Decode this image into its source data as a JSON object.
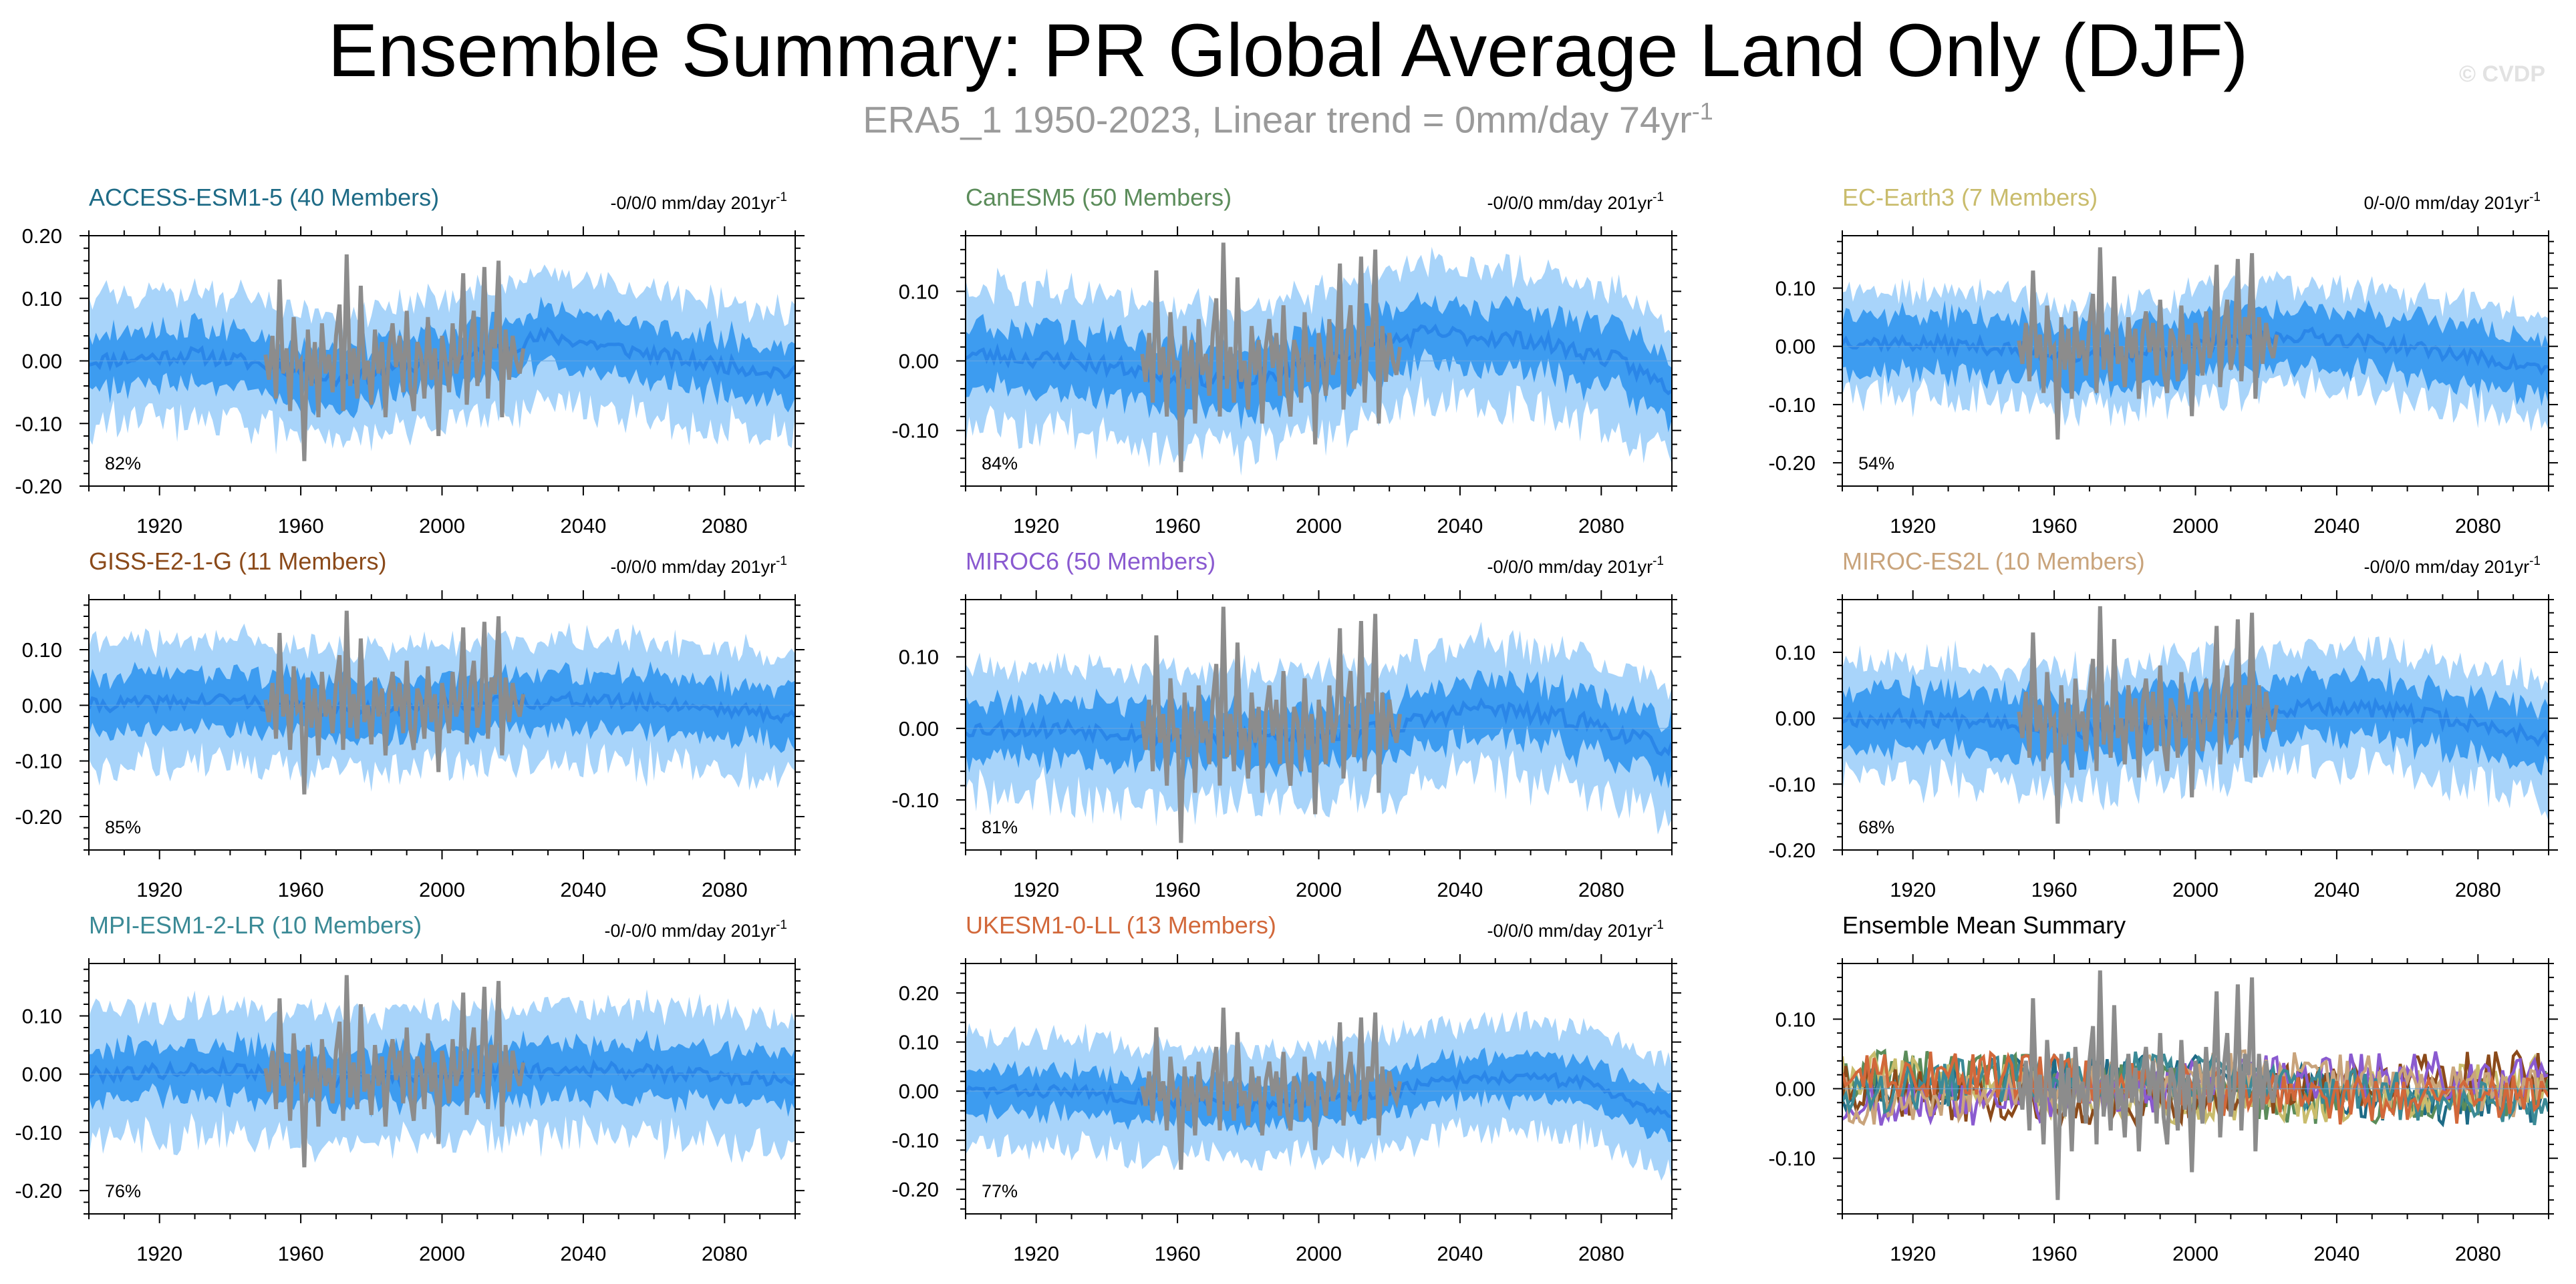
{
  "title": "Ensemble Summary: PR Global Average Land Only (DJF)",
  "subtitle": {
    "text": "ERA5_1 1950-2023, Linear trend = 0mm/day 74yr",
    "superscript": "-1"
  },
  "watermark": "© CVDP",
  "colors": {
    "spread_outer": "#a8d4fa",
    "spread_inner": "#3d9cf0",
    "ensemble_mean": "#2a86e8",
    "observations": "#8c8c8c",
    "axis": "#000000"
  },
  "chart_data": [
    {
      "type": "area",
      "title": "ACCESS-ESM1-5 (40 Members)",
      "title_color": "#1e6b86",
      "trend_label": "-0/0/0 mm/day 201yr",
      "trend_sup": "-1",
      "percent_label": "82%",
      "xlim": [
        1900,
        2100
      ],
      "ylim": [
        -0.2,
        0.2
      ],
      "xticks": [
        1920,
        1960,
        2000,
        2040,
        2080
      ],
      "yticks": [
        0.2,
        0.1,
        0.0,
        -0.1,
        -0.2
      ],
      "ytick_labels": [
        "0.20",
        "0.10",
        "0.00",
        "-0.10",
        "-0.20"
      ],
      "mean_path": [
        [
          1900,
          0.0
        ],
        [
          1930,
          0.01
        ],
        [
          1955,
          -0.01
        ],
        [
          1970,
          -0.03
        ],
        [
          1990,
          -0.01
        ],
        [
          2010,
          0.01
        ],
        [
          2030,
          0.04
        ],
        [
          2050,
          0.02
        ],
        [
          2070,
          0.0
        ],
        [
          2100,
          -0.02
        ]
      ],
      "inner_halfwidth": 0.045,
      "outer_halfwidth": 0.1,
      "seed": 11
    },
    {
      "type": "area",
      "title": "CanESM5 (50 Members)",
      "title_color": "#5b8c5a",
      "trend_label": "-0/0/0 mm/day 201yr",
      "trend_sup": "-1",
      "percent_label": "84%",
      "xlim": [
        1900,
        2100
      ],
      "ylim": [
        -0.18,
        0.18
      ],
      "xticks": [
        1920,
        1960,
        2000,
        2040,
        2080
      ],
      "yticks": [
        0.1,
        0.0,
        -0.1
      ],
      "ytick_labels": [
        "0.10",
        "0.00",
        "-0.10"
      ],
      "mean_path": [
        [
          1900,
          0.01
        ],
        [
          1930,
          0.0
        ],
        [
          1960,
          -0.02
        ],
        [
          1980,
          -0.03
        ],
        [
          2000,
          0.0
        ],
        [
          2030,
          0.04
        ],
        [
          2060,
          0.03
        ],
        [
          2085,
          0.0
        ],
        [
          2100,
          -0.04
        ]
      ],
      "inner_halfwidth": 0.045,
      "outer_halfwidth": 0.1,
      "seed": 23
    },
    {
      "type": "area",
      "title": "EC-Earth3 (7 Members)",
      "title_color": "#c9bc6c",
      "trend_label": "0/-0/0 mm/day 201yr",
      "trend_sup": "-1",
      "percent_label": "54%",
      "xlim": [
        1900,
        2100
      ],
      "ylim": [
        -0.24,
        0.19
      ],
      "xticks": [
        1920,
        1960,
        2000,
        2040,
        2080
      ],
      "yticks": [
        0.1,
        0.0,
        -0.1,
        -0.2
      ],
      "ytick_labels": [
        "0.10",
        "0.00",
        "-0.10",
        "-0.20"
      ],
      "mean_path": [
        [
          1900,
          0.01
        ],
        [
          1940,
          0.0
        ],
        [
          1970,
          -0.02
        ],
        [
          2000,
          0.0
        ],
        [
          2030,
          0.02
        ],
        [
          2060,
          0.0
        ],
        [
          2100,
          -0.04
        ]
      ],
      "inner_halfwidth": 0.05,
      "outer_halfwidth": 0.09,
      "seed": 37
    },
    {
      "type": "area",
      "title": "GISS-E2-1-G (11 Members)",
      "title_color": "#8b4a1a",
      "trend_label": "-0/0/0 mm/day 201yr",
      "trend_sup": "-1",
      "percent_label": "85%",
      "xlim": [
        1900,
        2100
      ],
      "ylim": [
        -0.26,
        0.19
      ],
      "xticks": [
        1920,
        1960,
        2000,
        2040,
        2080
      ],
      "yticks": [
        0.1,
        0.0,
        -0.1,
        -0.2
      ],
      "ytick_labels": [
        "0.10",
        "0.00",
        "-0.10",
        "-0.20"
      ],
      "mean_path": [
        [
          1900,
          0.0
        ],
        [
          1940,
          0.01
        ],
        [
          1970,
          -0.01
        ],
        [
          2000,
          0.0
        ],
        [
          2040,
          0.01
        ],
        [
          2070,
          0.0
        ],
        [
          2100,
          -0.02
        ]
      ],
      "inner_halfwidth": 0.05,
      "outer_halfwidth": 0.11,
      "seed": 41
    },
    {
      "type": "area",
      "title": "MIROC6 (50 Members)",
      "title_color": "#8a5ad0",
      "trend_label": "-0/0/0 mm/day 201yr",
      "trend_sup": "-1",
      "percent_label": "81%",
      "xlim": [
        1900,
        2100
      ],
      "ylim": [
        -0.17,
        0.18
      ],
      "xticks": [
        1920,
        1960,
        2000,
        2040,
        2080
      ],
      "yticks": [
        0.1,
        0.0,
        -0.1
      ],
      "ytick_labels": [
        "0.10",
        "0.00",
        "-0.10"
      ],
      "mean_path": [
        [
          1900,
          0.0
        ],
        [
          1930,
          0.0
        ],
        [
          1960,
          -0.01
        ],
        [
          1990,
          -0.01
        ],
        [
          2020,
          0.0
        ],
        [
          2045,
          0.03
        ],
        [
          2075,
          0.01
        ],
        [
          2100,
          -0.03
        ]
      ],
      "inner_halfwidth": 0.04,
      "outer_halfwidth": 0.09,
      "seed": 53
    },
    {
      "type": "area",
      "title": "MIROC-ES2L (10 Members)",
      "title_color": "#c9a47c",
      "trend_label": "-0/0/0 mm/day 201yr",
      "trend_sup": "-1",
      "percent_label": "68%",
      "xlim": [
        1900,
        2100
      ],
      "ylim": [
        -0.2,
        0.18
      ],
      "xticks": [
        1920,
        1960,
        2000,
        2040,
        2080
      ],
      "yticks": [
        0.1,
        0.0,
        -0.1,
        -0.2
      ],
      "ytick_labels": [
        "0.10",
        "0.00",
        "-0.10",
        "-0.20"
      ],
      "mean_path": [
        [
          1900,
          0.0
        ],
        [
          1940,
          0.0
        ],
        [
          1970,
          -0.02
        ],
        [
          2000,
          0.0
        ],
        [
          2040,
          0.02
        ],
        [
          2070,
          0.0
        ],
        [
          2100,
          -0.03
        ]
      ],
      "inner_halfwidth": 0.045,
      "outer_halfwidth": 0.09,
      "seed": 67
    },
    {
      "type": "area",
      "title": "MPI-ESM1-2-LR (10 Members)",
      "title_color": "#3b8a96",
      "trend_label": "-0/-0/0 mm/day 201yr",
      "trend_sup": "-1",
      "percent_label": "76%",
      "xlim": [
        1900,
        2100
      ],
      "ylim": [
        -0.24,
        0.19
      ],
      "xticks": [
        1920,
        1960,
        2000,
        2040,
        2080
      ],
      "yticks": [
        0.1,
        0.0,
        -0.1,
        -0.2
      ],
      "ytick_labels": [
        "0.10",
        "0.00",
        "-0.10",
        "-0.20"
      ],
      "mean_path": [
        [
          1900,
          0.0
        ],
        [
          1940,
          0.01
        ],
        [
          1970,
          -0.01
        ],
        [
          2000,
          0.0
        ],
        [
          2040,
          0.01
        ],
        [
          2070,
          0.0
        ],
        [
          2100,
          -0.01
        ]
      ],
      "inner_halfwidth": 0.045,
      "outer_halfwidth": 0.11,
      "seed": 79
    },
    {
      "type": "area",
      "title": "UKESM1-0-LL (13 Members)",
      "title_color": "#d2683a",
      "trend_label": "-0/0/0 mm/day 201yr",
      "trend_sup": "-1",
      "percent_label": "77%",
      "xlim": [
        1900,
        2100
      ],
      "ylim": [
        -0.25,
        0.26
      ],
      "xticks": [
        1920,
        1960,
        2000,
        2040,
        2080
      ],
      "yticks": [
        0.2,
        0.1,
        0.0,
        -0.1,
        -0.2
      ],
      "ytick_labels": [
        "0.20",
        "0.10",
        "0.00",
        "-0.10",
        "-0.20"
      ],
      "mean_path": [
        [
          1900,
          0.0
        ],
        [
          1930,
          0.0
        ],
        [
          1960,
          -0.02
        ],
        [
          1990,
          -0.03
        ],
        [
          2020,
          0.0
        ],
        [
          2045,
          0.03
        ],
        [
          2075,
          0.02
        ],
        [
          2100,
          -0.05
        ]
      ],
      "inner_halfwidth": 0.045,
      "outer_halfwidth": 0.11,
      "seed": 83
    },
    {
      "type": "line",
      "title": "Ensemble Mean Summary",
      "title_color": "#000000",
      "trend_label": "",
      "trend_sup": "",
      "percent_label": "",
      "xlim": [
        1900,
        2100
      ],
      "ylim": [
        -0.18,
        0.18
      ],
      "xticks": [
        1920,
        1960,
        2000,
        2040,
        2080
      ],
      "yticks": [
        0.1,
        0.0,
        -0.1
      ],
      "ytick_labels": [
        "0.10",
        "0.00",
        "-0.10"
      ],
      "series_colors": [
        "#1e6b86",
        "#5b8c5a",
        "#c9bc6c",
        "#8b4a1a",
        "#8a5ad0",
        "#c9a47c",
        "#3b8a96",
        "#d2683a"
      ],
      "seed": 97
    }
  ],
  "observations": {
    "name": "ERA5_1",
    "years": [
      1950,
      2023
    ],
    "values": [
      0.01,
      -0.03,
      0.04,
      -0.06,
      0.13,
      -0.02,
      0.02,
      -0.08,
      0.07,
      -0.01,
      0.0,
      -0.16,
      0.05,
      -0.04,
      0.03,
      -0.09,
      0.06,
      -0.02,
      0.01,
      -0.05,
      0.04,
      0.09,
      -0.08,
      0.17,
      -0.04,
      0.02,
      -0.06,
      0.12,
      -0.03,
      0.0,
      -0.07,
      0.05,
      -0.02,
      0.03,
      -0.09,
      0.02,
      0.06,
      -0.01,
      0.04,
      -0.05,
      0.08,
      -0.04,
      -0.08,
      0.03,
      0.01,
      -0.06,
      0.07,
      -0.03,
      0.02,
      -0.12,
      0.04,
      0.0,
      -0.05,
      0.06,
      -0.02,
      0.01,
      0.14,
      -0.07,
      0.03,
      0.08,
      -0.04,
      0.0,
      0.15,
      -0.06,
      0.05,
      0.02,
      0.16,
      -0.09,
      0.05,
      -0.03,
      0.04,
      0.0,
      -0.02,
      0.02
    ]
  }
}
